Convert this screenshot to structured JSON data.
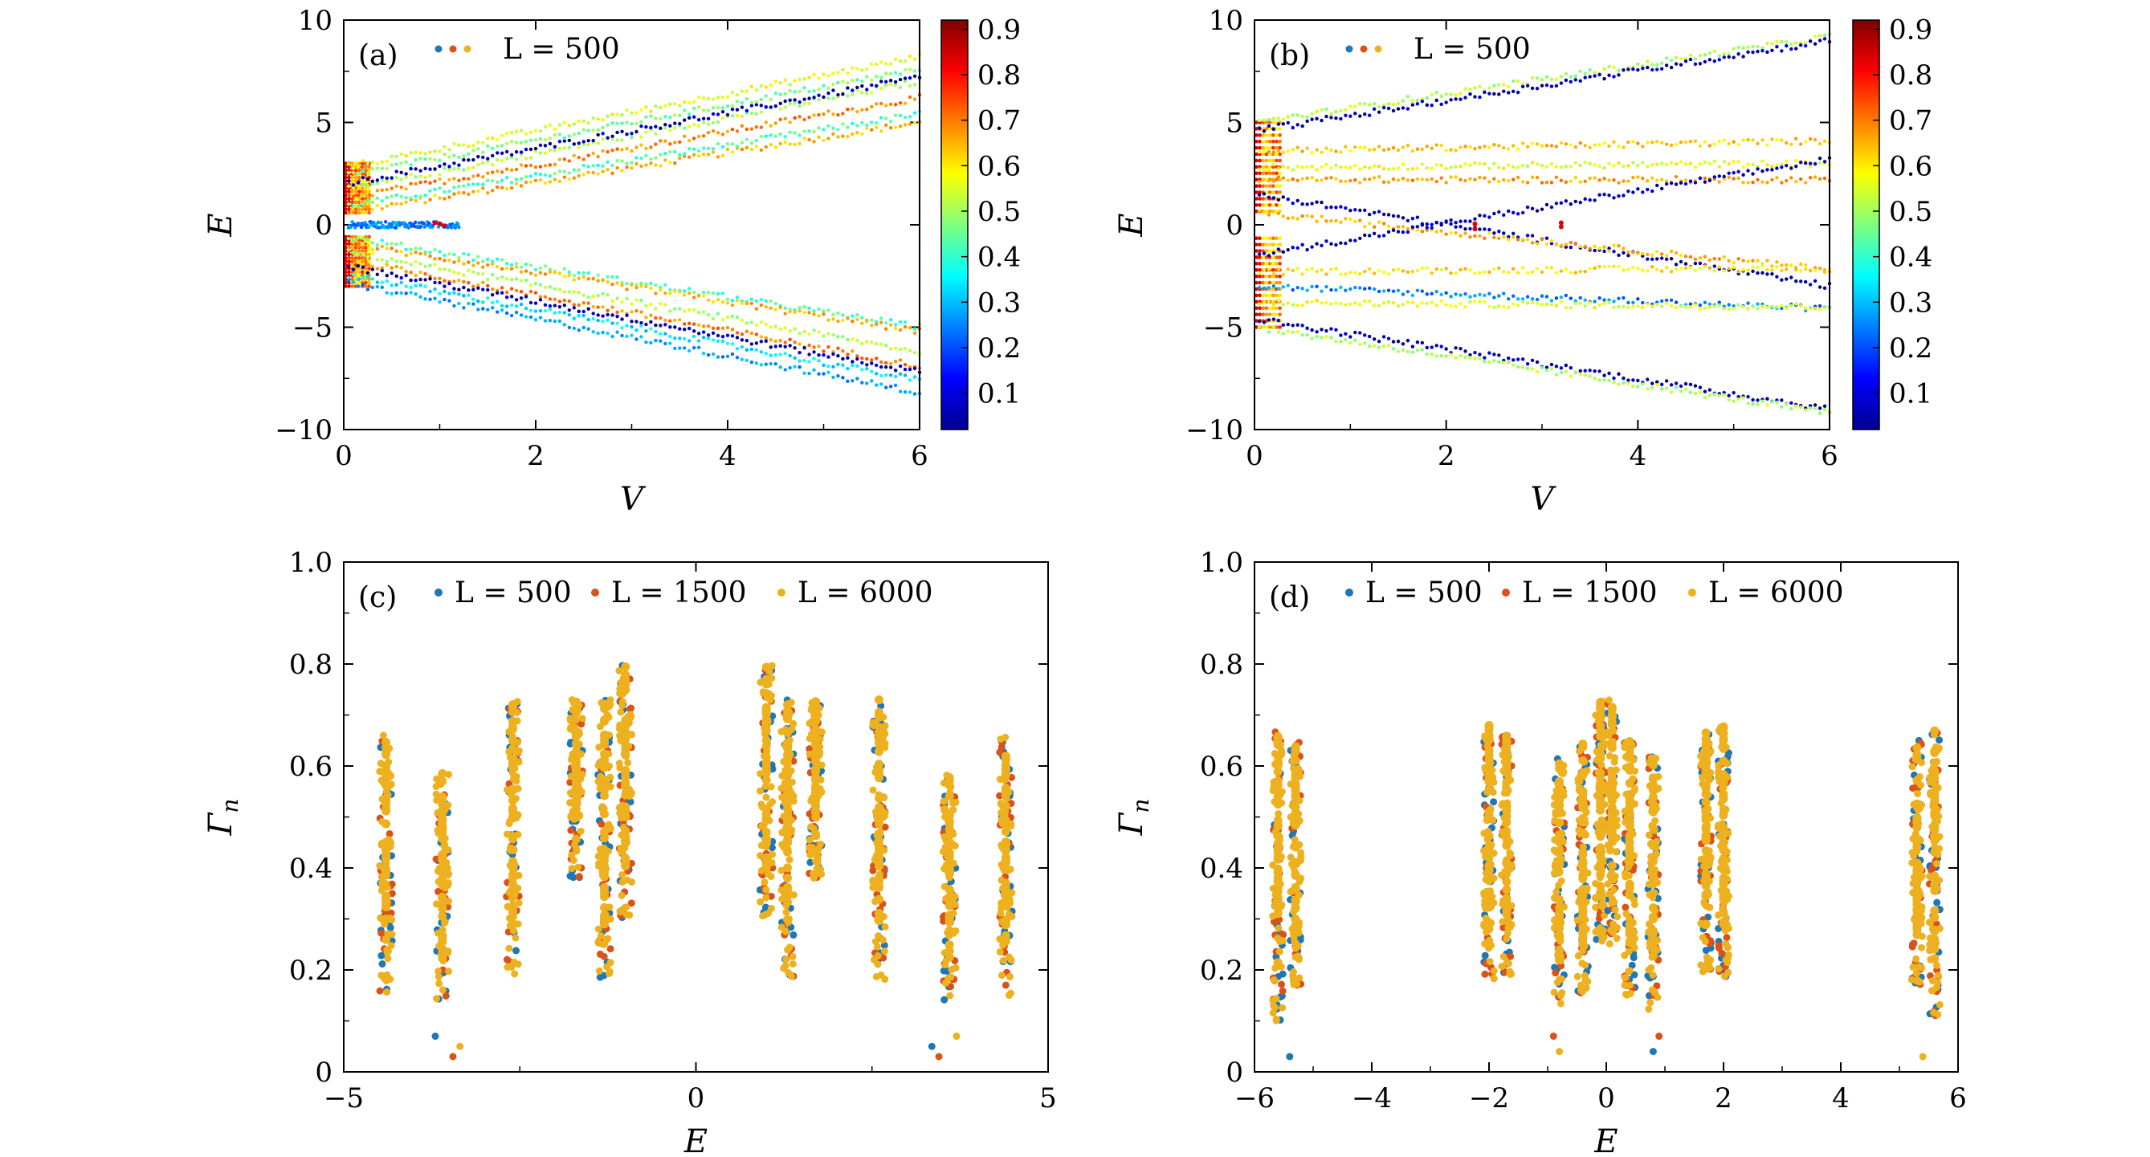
{
  "chart_data": [
    {
      "panel": "(a)",
      "type": "scatter",
      "xlabel": "V",
      "ylabel": "E",
      "xlim": [
        0,
        6
      ],
      "ylim": [
        -10,
        10
      ],
      "xticks": [
        "0",
        "2",
        "4",
        "6"
      ],
      "yticks": [
        "10",
        "5",
        "0",
        "−5",
        "−10"
      ],
      "legend": {
        "label": "L = 500",
        "location": "top-left"
      },
      "colorbar": {
        "ticks": [
          "0.9",
          "0.8",
          "0.7",
          "0.6",
          "0.5",
          "0.4",
          "0.3",
          "0.2",
          "0.1"
        ],
        "range": [
          0.02,
          0.92
        ],
        "cmap": "jet"
      },
      "bands": [
        {
          "E0": 0.6,
          "E6": 5.0,
          "c": 0.7
        },
        {
          "E0": 0.9,
          "E6": 5.4,
          "c": 0.45
        },
        {
          "E0": 1.3,
          "E6": 6.2,
          "c": 0.75
        },
        {
          "E0": 1.7,
          "E6": 7.0,
          "c": 0.55
        },
        {
          "E0": 2.0,
          "E6": 7.2,
          "c": 0.05
        },
        {
          "E0": 2.4,
          "E6": 7.6,
          "c": 0.5
        },
        {
          "E0": 2.8,
          "E6": 8.2,
          "c": 0.6
        },
        {
          "E0": 0.0,
          "E6": 0.0,
          "c": 0.25,
          "vmax": 1.2
        },
        {
          "E0": -0.6,
          "E6": -5.0,
          "c": 0.45
        },
        {
          "E0": -0.9,
          "E6": -5.2,
          "c": 0.7
        },
        {
          "E0": -1.3,
          "E6": -6.2,
          "c": 0.55
        },
        {
          "E0": -1.7,
          "E6": -6.9,
          "c": 0.75
        },
        {
          "E0": -2.0,
          "E6": -7.2,
          "c": 0.05
        },
        {
          "E0": -2.4,
          "E6": -7.6,
          "c": 0.35
        },
        {
          "E0": -2.8,
          "E6": -8.2,
          "c": 0.28
        }
      ]
    },
    {
      "panel": "(b)",
      "type": "scatter",
      "xlabel": "V",
      "ylabel": "E",
      "xlim": [
        0,
        6
      ],
      "ylim": [
        -10,
        10
      ],
      "xticks": [
        "0",
        "2",
        "4",
        "6"
      ],
      "yticks": [
        "10",
        "5",
        "0",
        "−5",
        "−10"
      ],
      "legend": {
        "label": "L = 500",
        "location": "top-left"
      },
      "colorbar": {
        "ticks": [
          "0.9",
          "0.8",
          "0.7",
          "0.6",
          "0.5",
          "0.4",
          "0.3",
          "0.2",
          "0.1"
        ],
        "range": [
          0.02,
          0.92
        ],
        "cmap": "jet"
      },
      "bands": [
        {
          "E0": 5.0,
          "E6": 9.2,
          "c": 0.55
        },
        {
          "E0": 4.6,
          "E6": 9.0,
          "c": 0.05
        },
        {
          "E0": 3.6,
          "E6": 4.1,
          "c": 0.68
        },
        {
          "E0": 2.8,
          "E6": 3.0,
          "c": 0.6
        },
        {
          "E0": 2.2,
          "E6": 2.2,
          "c": 0.72
        },
        {
          "E0": 1.5,
          "E6": -3.0,
          "c": 0.05
        },
        {
          "E0": 0.6,
          "E6": -2.2,
          "c": 0.7
        },
        {
          "E0": -1.5,
          "E6": 3.2,
          "c": 0.05
        },
        {
          "E0": -2.3,
          "E6": -2.1,
          "c": 0.65
        },
        {
          "E0": -3.0,
          "E6": -4.1,
          "c": 0.25
        },
        {
          "E0": -3.8,
          "E6": -4.0,
          "c": 0.6
        },
        {
          "E0": -4.6,
          "E6": -9.0,
          "c": 0.05
        },
        {
          "E0": -5.0,
          "E6": -9.2,
          "c": 0.55
        }
      ]
    },
    {
      "panel": "(c)",
      "type": "scatter",
      "xlabel": "E",
      "ylabel": "Γn",
      "xlim": [
        -5,
        5
      ],
      "ylim": [
        0,
        1
      ],
      "xticks": [
        "−5",
        "0",
        "5"
      ],
      "yticks": [
        "1.0",
        "0.8",
        "0.6",
        "0.4",
        "0.2",
        "0"
      ],
      "series": [
        {
          "name": "L = 500",
          "color": "#1f77b4"
        },
        {
          "name": "L = 1500",
          "color": "#d95319"
        },
        {
          "name": "L = 6000",
          "color": "#edb120"
        }
      ],
      "clusters": [
        {
          "x": -4.4,
          "ymin": 0.15,
          "ymax": 0.66
        },
        {
          "x": -3.6,
          "ymin": 0.13,
          "ymax": 0.59
        },
        {
          "x": -2.6,
          "ymin": 0.18,
          "ymax": 0.73
        },
        {
          "x": -1.7,
          "ymin": 0.38,
          "ymax": 0.73
        },
        {
          "x": -1.3,
          "ymin": 0.18,
          "ymax": 0.73
        },
        {
          "x": -1.0,
          "ymin": 0.3,
          "ymax": 0.8
        },
        {
          "x": 1.0,
          "ymin": 0.3,
          "ymax": 0.8
        },
        {
          "x": 1.3,
          "ymin": 0.18,
          "ymax": 0.73
        },
        {
          "x": 1.7,
          "ymin": 0.38,
          "ymax": 0.73
        },
        {
          "x": 2.6,
          "ymin": 0.18,
          "ymax": 0.73
        },
        {
          "x": 3.6,
          "ymin": 0.13,
          "ymax": 0.59
        },
        {
          "x": 4.4,
          "ymin": 0.15,
          "ymax": 0.66
        }
      ],
      "outliers": [
        {
          "x": -3.7,
          "y": 0.07
        },
        {
          "x": -3.45,
          "y": 0.03
        },
        {
          "x": -3.35,
          "y": 0.05
        },
        {
          "x": 3.35,
          "y": 0.05
        },
        {
          "x": 3.45,
          "y": 0.03
        },
        {
          "x": 3.7,
          "y": 0.07
        }
      ]
    },
    {
      "panel": "(d)",
      "type": "scatter",
      "xlabel": "E",
      "ylabel": "Γn",
      "xlim": [
        -6,
        6
      ],
      "ylim": [
        0,
        1
      ],
      "xticks": [
        "−6",
        "−4",
        "−2",
        "0",
        "2",
        "4",
        "6"
      ],
      "yticks": [
        "1.0",
        "0.8",
        "0.6",
        "0.4",
        "0.2",
        "0"
      ],
      "series": [
        {
          "name": "L = 500",
          "color": "#1f77b4"
        },
        {
          "name": "L = 1500",
          "color": "#d95319"
        },
        {
          "name": "L = 6000",
          "color": "#edb120"
        }
      ],
      "clusters": [
        {
          "x": -5.6,
          "ymin": 0.1,
          "ymax": 0.67
        },
        {
          "x": -5.3,
          "ymin": 0.17,
          "ymax": 0.65
        },
        {
          "x": -2.0,
          "ymin": 0.18,
          "ymax": 0.68
        },
        {
          "x": -1.7,
          "ymin": 0.19,
          "ymax": 0.67
        },
        {
          "x": -0.8,
          "ymin": 0.12,
          "ymax": 0.62
        },
        {
          "x": -0.4,
          "ymin": 0.15,
          "ymax": 0.65
        },
        {
          "x": -0.1,
          "ymin": 0.25,
          "ymax": 0.73
        },
        {
          "x": 0.1,
          "ymin": 0.25,
          "ymax": 0.73
        },
        {
          "x": 0.4,
          "ymin": 0.15,
          "ymax": 0.65
        },
        {
          "x": 0.8,
          "ymin": 0.12,
          "ymax": 0.62
        },
        {
          "x": 1.7,
          "ymin": 0.19,
          "ymax": 0.67
        },
        {
          "x": 2.0,
          "ymin": 0.18,
          "ymax": 0.68
        },
        {
          "x": 5.3,
          "ymin": 0.17,
          "ymax": 0.65
        },
        {
          "x": 5.6,
          "ymin": 0.1,
          "ymax": 0.67
        }
      ],
      "outliers": [
        {
          "x": -5.4,
          "y": 0.03
        },
        {
          "x": -0.9,
          "y": 0.07
        },
        {
          "x": -0.8,
          "y": 0.04
        },
        {
          "x": 0.8,
          "y": 0.04
        },
        {
          "x": 0.9,
          "y": 0.07
        },
        {
          "x": 5.4,
          "y": 0.03
        }
      ]
    }
  ]
}
